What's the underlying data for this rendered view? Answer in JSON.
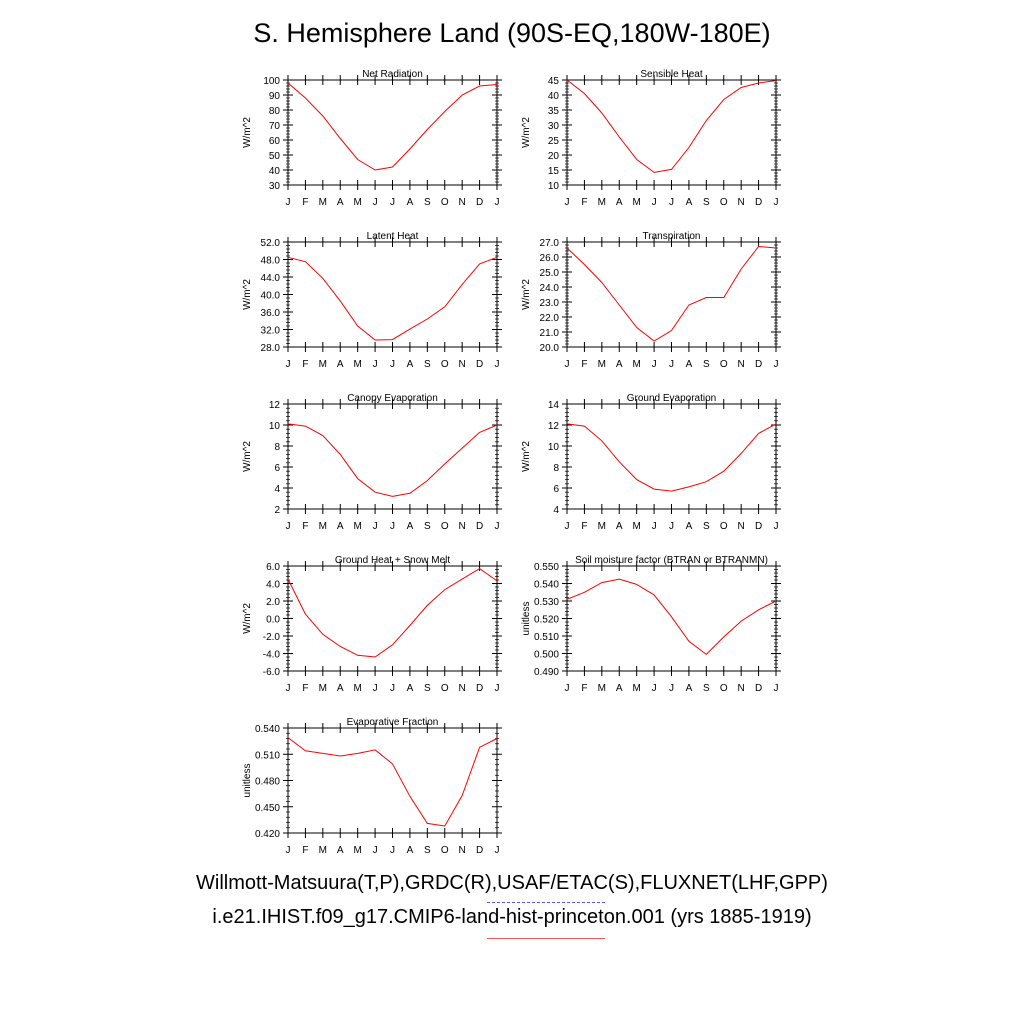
{
  "title": "S. Hemisphere Land (90S-EQ,180W-180E)",
  "legend": {
    "observations": "Willmott-Matsuura(T,P),GRDC(R),USAF/ETAC(S),FLUXNET(LHF,GPP)",
    "model": "i.e21.IHIST.f09_g17.CMIP6-land-hist-princeton.001 (yrs 1885-1919)",
    "observations_color": "#5555ff",
    "model_color": "#ff0000"
  },
  "chart_data": [
    {
      "type": "line",
      "title": "Net Radiation",
      "ylabel": "W/m^2",
      "ylim": [
        30,
        100
      ],
      "yticks": [
        "30",
        "40",
        "50",
        "60",
        "70",
        "80",
        "90",
        "100"
      ],
      "categories": [
        "J",
        "F",
        "M",
        "A",
        "M",
        "J",
        "J",
        "A",
        "S",
        "O",
        "N",
        "D",
        "J"
      ],
      "values": [
        98,
        88,
        76,
        61,
        47,
        40,
        42,
        54,
        67,
        79,
        90,
        96,
        97
      ],
      "color": "#ff0000"
    },
    {
      "type": "line",
      "title": "Sensible Heat",
      "ylabel": "W/m^2",
      "ylim": [
        10,
        45
      ],
      "yticks": [
        "10",
        "15",
        "20",
        "25",
        "30",
        "35",
        "40",
        "45"
      ],
      "categories": [
        "J",
        "F",
        "M",
        "A",
        "M",
        "J",
        "J",
        "A",
        "S",
        "O",
        "N",
        "D",
        "J"
      ],
      "values": [
        45,
        40.5,
        34,
        26,
        18.5,
        14.2,
        15.2,
        22.5,
        31.5,
        38.5,
        42.5,
        44,
        44.8
      ],
      "color": "#ff0000"
    },
    {
      "type": "line",
      "title": "Latent Heat",
      "ylabel": "W/m^2",
      "ylim": [
        28,
        52
      ],
      "yticks": [
        "28.0",
        "32.0",
        "36.0",
        "40.0",
        "44.0",
        "48.0",
        "52.0"
      ],
      "categories": [
        "J",
        "F",
        "M",
        "A",
        "M",
        "J",
        "J",
        "A",
        "S",
        "O",
        "N",
        "D",
        "J"
      ],
      "values": [
        48.5,
        47.5,
        43.7,
        38.5,
        32.8,
        29.6,
        29.7,
        32.1,
        34.4,
        37.2,
        42.3,
        47,
        48.5
      ],
      "color": "#ff0000"
    },
    {
      "type": "line",
      "title": "Transpiration",
      "ylabel": "W/m^2",
      "ylim": [
        20,
        27
      ],
      "yticks": [
        "20.0",
        "21.0",
        "22.0",
        "23.0",
        "24.0",
        "25.0",
        "26.0",
        "27.0"
      ],
      "categories": [
        "J",
        "F",
        "M",
        "A",
        "M",
        "J",
        "J",
        "A",
        "S",
        "O",
        "N",
        "D",
        "J"
      ],
      "values": [
        26.6,
        25.5,
        24.3,
        22.8,
        21.3,
        20.4,
        21.1,
        22.8,
        23.3,
        23.3,
        25.2,
        26.7,
        26.6
      ],
      "color": "#ff0000"
    },
    {
      "type": "line",
      "title": "Canopy Evaporation",
      "ylabel": "W/m^2",
      "ylim": [
        2,
        12
      ],
      "yticks": [
        "2",
        "4",
        "6",
        "8",
        "10",
        "12"
      ],
      "categories": [
        "J",
        "F",
        "M",
        "A",
        "M",
        "J",
        "J",
        "A",
        "S",
        "O",
        "N",
        "D",
        "J"
      ],
      "values": [
        10.1,
        9.9,
        9,
        7.2,
        4.9,
        3.6,
        3.2,
        3.5,
        4.7,
        6.3,
        7.8,
        9.3,
        10
      ],
      "color": "#ff0000"
    },
    {
      "type": "line",
      "title": "Ground Evaporation",
      "ylabel": "W/m^2",
      "ylim": [
        4,
        14
      ],
      "yticks": [
        "4",
        "6",
        "8",
        "10",
        "12",
        "14"
      ],
      "categories": [
        "J",
        "F",
        "M",
        "A",
        "M",
        "J",
        "J",
        "A",
        "S",
        "O",
        "N",
        "D",
        "J"
      ],
      "values": [
        12.1,
        11.9,
        10.5,
        8.5,
        6.8,
        5.9,
        5.7,
        6.1,
        6.6,
        7.6,
        9.3,
        11.2,
        12.1
      ],
      "color": "#ff0000"
    },
    {
      "type": "line",
      "title": "Ground Heat + Snow Melt",
      "ylabel": "W/m^2",
      "ylim": [
        -6,
        6
      ],
      "yticks": [
        "-6.0",
        "-4.0",
        "-2.0",
        "0.0",
        "2.0",
        "4.0",
        "6.0"
      ],
      "categories": [
        "J",
        "F",
        "M",
        "A",
        "M",
        "J",
        "J",
        "A",
        "S",
        "O",
        "N",
        "D",
        "J"
      ],
      "values": [
        4.5,
        0.5,
        -1.8,
        -3.2,
        -4.2,
        -4.4,
        -3.0,
        -0.8,
        1.5,
        3.3,
        4.5,
        5.7,
        4.3
      ],
      "color": "#ff0000"
    },
    {
      "type": "line",
      "title": "Soil moisture factor (BTRAN or BTRANMN)",
      "ylabel": "unitless",
      "ylim": [
        0.49,
        0.55
      ],
      "yticks": [
        "0.490",
        "0.500",
        "0.510",
        "0.520",
        "0.530",
        "0.540",
        "0.550"
      ],
      "categories": [
        "J",
        "F",
        "M",
        "A",
        "M",
        "J",
        "J",
        "A",
        "S",
        "O",
        "N",
        "D",
        "J"
      ],
      "values": [
        0.531,
        0.535,
        0.5405,
        0.5425,
        0.5395,
        0.5335,
        0.521,
        0.507,
        0.4995,
        0.5095,
        0.5185,
        0.525,
        0.53
      ],
      "color": "#ff0000"
    },
    {
      "type": "line",
      "title": "Evaporative Fraction",
      "ylabel": "unitless",
      "ylim": [
        0.42,
        0.54
      ],
      "yticks": [
        "0.420",
        "0.450",
        "0.480",
        "0.510",
        "0.540"
      ],
      "categories": [
        "J",
        "F",
        "M",
        "A",
        "M",
        "J",
        "J",
        "A",
        "S",
        "O",
        "N",
        "D",
        "J"
      ],
      "values": [
        0.529,
        0.514,
        0.511,
        0.508,
        0.511,
        0.515,
        0.499,
        0.462,
        0.431,
        0.428,
        0.463,
        0.518,
        0.528
      ],
      "color": "#ff0000"
    }
  ]
}
